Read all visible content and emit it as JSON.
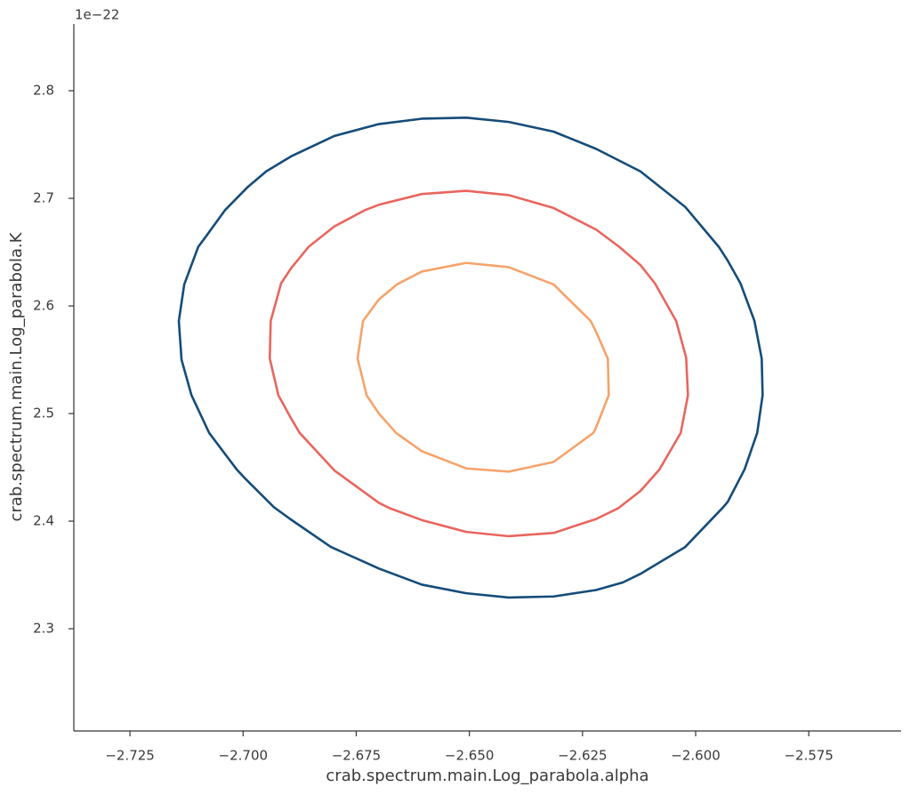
{
  "chart_data": {
    "type": "contour",
    "x_label": "crab.spectrum.main.Log_parabola.alpha",
    "y_label": "crab.spectrum.main.Log_parabola.K",
    "y_offset_label": "1e−22",
    "xlim": [
      -2.7374,
      -2.5546
    ],
    "ylim": [
      2.205,
      2.862
    ],
    "xticks": [
      {
        "value": -2.725,
        "label": "−2.725"
      },
      {
        "value": -2.7,
        "label": "−2.700"
      },
      {
        "value": -2.675,
        "label": "−2.675"
      },
      {
        "value": -2.65,
        "label": "−2.650"
      },
      {
        "value": -2.625,
        "label": "−2.625"
      },
      {
        "value": -2.6,
        "label": "−2.600"
      },
      {
        "value": -2.575,
        "label": "−2.575"
      }
    ],
    "yticks": [
      2.3,
      2.4,
      2.5,
      2.6,
      2.7,
      2.8
    ],
    "series": [
      {
        "color": "#154c79",
        "x": [
          -2.6507,
          -2.6413,
          -2.6314,
          -2.622,
          -2.6122,
          -2.6023,
          -2.5949,
          -2.5929,
          -2.5901,
          -2.587,
          -2.5854,
          -2.5852,
          -2.5864,
          -2.5892,
          -2.5929,
          -2.5939,
          -2.6023,
          -2.6122,
          -2.6161,
          -2.622,
          -2.6314,
          -2.6413,
          -2.6507,
          -2.6605,
          -2.67,
          -2.6806,
          -2.6896,
          -2.6932,
          -2.6994,
          -2.7014,
          -2.7075,
          -2.7114,
          -2.7136,
          -2.7142,
          -2.713,
          -2.7099,
          -2.7083,
          -2.704,
          -2.6991,
          -2.6949,
          -2.6894,
          -2.6798,
          -2.67,
          -2.6605,
          -2.6507
        ],
        "y": [
          2.775,
          2.771,
          2.762,
          2.746,
          2.725,
          2.692,
          2.655,
          2.642,
          2.621,
          2.586,
          2.551,
          2.517,
          2.482,
          2.448,
          2.418,
          2.413,
          2.376,
          2.351,
          2.343,
          2.336,
          2.33,
          2.329,
          2.333,
          2.341,
          2.356,
          2.376,
          2.402,
          2.413,
          2.439,
          2.448,
          2.482,
          2.517,
          2.55,
          2.586,
          2.62,
          2.655,
          2.664,
          2.689,
          2.71,
          2.725,
          2.739,
          2.758,
          2.769,
          2.774,
          2.775
        ]
      },
      {
        "color": "#e8665f",
        "x": [
          -2.6507,
          -2.6413,
          -2.6314,
          -2.622,
          -2.6169,
          -2.6122,
          -2.609,
          -2.6043,
          -2.6021,
          -2.6017,
          -2.6033,
          -2.608,
          -2.6122,
          -2.6171,
          -2.622,
          -2.6314,
          -2.6413,
          -2.6507,
          -2.6605,
          -2.6676,
          -2.67,
          -2.6798,
          -2.6875,
          -2.6896,
          -2.6922,
          -2.6941,
          -2.6939,
          -2.6916,
          -2.6894,
          -2.6855,
          -2.6798,
          -2.6731,
          -2.67,
          -2.6605,
          -2.6507
        ],
        "y": [
          2.707,
          2.703,
          2.691,
          2.671,
          2.655,
          2.638,
          2.621,
          2.586,
          2.552,
          2.517,
          2.482,
          2.448,
          2.428,
          2.412,
          2.402,
          2.389,
          2.386,
          2.39,
          2.401,
          2.412,
          2.417,
          2.447,
          2.482,
          2.497,
          2.517,
          2.551,
          2.586,
          2.621,
          2.635,
          2.655,
          2.674,
          2.689,
          2.694,
          2.704,
          2.707
        ]
      },
      {
        "color": "#f6a36b",
        "x": [
          -2.6507,
          -2.6413,
          -2.6314,
          -2.6232,
          -2.622,
          -2.6194,
          -2.6192,
          -2.622,
          -2.6226,
          -2.6314,
          -2.6413,
          -2.6507,
          -2.6605,
          -2.6662,
          -2.67,
          -2.6727,
          -2.6747,
          -2.6735,
          -2.67,
          -2.666,
          -2.6605,
          -2.6507
        ],
        "y": [
          2.64,
          2.636,
          2.62,
          2.586,
          2.576,
          2.551,
          2.517,
          2.487,
          2.482,
          2.455,
          2.446,
          2.449,
          2.465,
          2.482,
          2.5,
          2.517,
          2.551,
          2.586,
          2.606,
          2.62,
          2.632,
          2.64
        ]
      }
    ]
  }
}
